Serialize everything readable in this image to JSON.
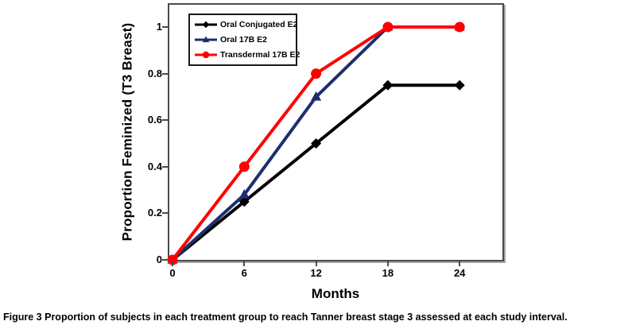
{
  "figure": {
    "caption_label": "Figure 3",
    "caption_text": "Proportion of subjects in each treatment group to reach Tanner breast stage 3 assessed at each study interval."
  },
  "chart_data": {
    "type": "line",
    "title": "",
    "xlabel": "Months",
    "ylabel": "Proportion Feminized (T3 Breast)",
    "x": [
      0,
      6,
      12,
      18,
      24
    ],
    "x_tick_labels": [
      "0",
      "6",
      "12",
      "18",
      "24"
    ],
    "y_ticks": [
      0,
      0.2,
      0.4,
      0.6,
      0.8,
      1
    ],
    "y_tick_labels": [
      "0",
      "0.2",
      "0.4",
      "0.6",
      "0.8",
      "1"
    ],
    "xlim": [
      0,
      27.6
    ],
    "ylim": [
      0,
      1.09
    ],
    "grid": false,
    "legend_position": "top-left-inside",
    "series": [
      {
        "name": "Oral Conjugated E2",
        "color": "#000000",
        "marker": "diamond",
        "values": [
          0,
          0.25,
          0.5,
          0.75,
          0.75
        ]
      },
      {
        "name": "Oral 17B E2",
        "color": "#1c2e6e",
        "marker": "triangle",
        "values": [
          0,
          0.28,
          0.7,
          1,
          1
        ]
      },
      {
        "name": "Transdermal 17B E2",
        "color": "#ff0000",
        "marker": "circle",
        "values": [
          0,
          0.4,
          0.8,
          1,
          1
        ]
      }
    ]
  }
}
